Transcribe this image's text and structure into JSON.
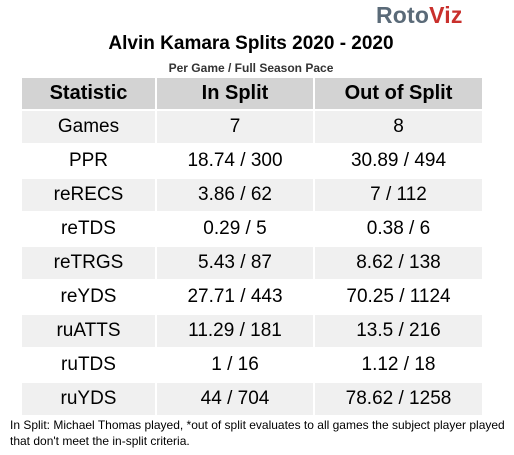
{
  "logo": {
    "part1": "Roto",
    "part2": "Viz"
  },
  "title": "Alvin Kamara Splits 2020 - 2020",
  "subtitle": "Per Game / Full Season Pace",
  "table": {
    "headers": [
      "Statistic",
      "In Split",
      "Out of Split"
    ],
    "rows": [
      [
        "Games",
        "7",
        "8"
      ],
      [
        "PPR",
        "18.74 / 300",
        "30.89 / 494"
      ],
      [
        "reRECS",
        "3.86 / 62",
        "7 / 112"
      ],
      [
        "reTDS",
        "0.29 / 5",
        "0.38 / 6"
      ],
      [
        "reTRGS",
        "5.43 / 87",
        "8.62 / 138"
      ],
      [
        "reYDS",
        "27.71 / 443",
        "70.25 / 1124"
      ],
      [
        "ruATTS",
        "11.29 / 181",
        "13.5 / 216"
      ],
      [
        "ruTDS",
        "1 / 16",
        "1.12 / 18"
      ],
      [
        "ruYDS",
        "44 / 704",
        "78.62 / 1258"
      ]
    ]
  },
  "footnote": "In Split: Michael Thomas played,  *out of split evaluates to all games the subject player played that don't meet the in-split criteria."
}
